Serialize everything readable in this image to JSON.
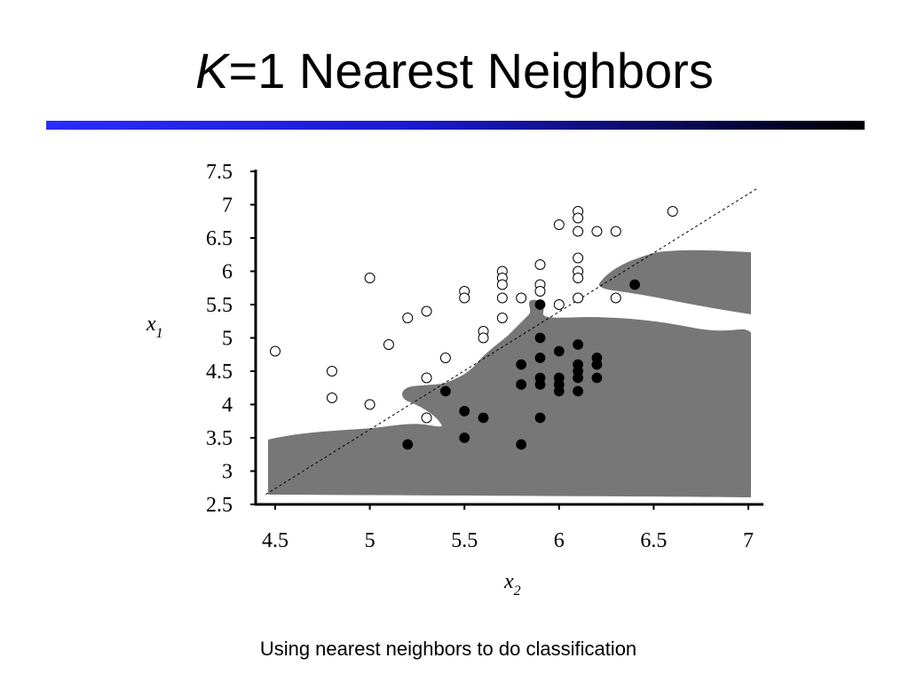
{
  "slide": {
    "title_k": "K",
    "title_rest": "=1 Nearest Neighbors",
    "caption": "Using nearest neighbors to do classification"
  },
  "chart_data": {
    "type": "scatter",
    "xlabel": "x",
    "xlabel_sub": "2",
    "ylabel": "x",
    "ylabel_sub": "1",
    "xlim": [
      4.45,
      7.08
    ],
    "ylim": [
      2.5,
      7.5
    ],
    "xticks": [
      "4.5",
      "5",
      "5.5",
      "6",
      "6.5",
      "7"
    ],
    "yticks": [
      "7.5",
      "7",
      "6.5",
      "6",
      "5.5",
      "5",
      "4.5",
      "4",
      "3.5",
      "3",
      "2.5"
    ],
    "grid": false,
    "region_color": "#777777",
    "diagonal": [
      [
        4.45,
        2.65
      ],
      [
        7.05,
        7.25
      ]
    ],
    "series": [
      {
        "marker": "open-circle",
        "points": [
          [
            4.5,
            4.8
          ],
          [
            4.8,
            4.5
          ],
          [
            4.8,
            4.1
          ],
          [
            5.0,
            5.9
          ],
          [
            5.0,
            4.0
          ],
          [
            5.1,
            4.9
          ],
          [
            5.2,
            5.3
          ],
          [
            5.3,
            5.4
          ],
          [
            5.3,
            4.4
          ],
          [
            5.3,
            3.8
          ],
          [
            5.4,
            4.7
          ],
          [
            5.5,
            5.7
          ],
          [
            5.5,
            5.6
          ],
          [
            5.6,
            5.1
          ],
          [
            5.6,
            5.0
          ],
          [
            5.7,
            6.0
          ],
          [
            5.7,
            5.9
          ],
          [
            5.7,
            5.8
          ],
          [
            5.7,
            5.6
          ],
          [
            5.7,
            5.3
          ],
          [
            5.8,
            5.6
          ],
          [
            5.9,
            6.1
          ],
          [
            5.9,
            5.8
          ],
          [
            5.9,
            5.7
          ],
          [
            6.0,
            6.7
          ],
          [
            6.0,
            5.5
          ],
          [
            6.1,
            6.9
          ],
          [
            6.1,
            6.8
          ],
          [
            6.1,
            6.6
          ],
          [
            6.1,
            6.2
          ],
          [
            6.1,
            6.0
          ],
          [
            6.1,
            5.9
          ],
          [
            6.1,
            5.6
          ],
          [
            6.2,
            6.6
          ],
          [
            6.3,
            6.6
          ],
          [
            6.3,
            5.6
          ],
          [
            6.6,
            6.9
          ]
        ]
      },
      {
        "marker": "filled-circle",
        "points": [
          [
            5.2,
            3.4
          ],
          [
            5.4,
            4.2
          ],
          [
            5.5,
            3.9
          ],
          [
            5.5,
            3.5
          ],
          [
            5.6,
            3.8
          ],
          [
            5.8,
            4.6
          ],
          [
            5.8,
            4.3
          ],
          [
            5.8,
            3.4
          ],
          [
            5.9,
            5.5
          ],
          [
            5.9,
            5.0
          ],
          [
            5.9,
            4.7
          ],
          [
            5.9,
            4.4
          ],
          [
            5.9,
            4.3
          ],
          [
            5.9,
            3.8
          ],
          [
            6.0,
            4.8
          ],
          [
            6.0,
            4.4
          ],
          [
            6.0,
            4.3
          ],
          [
            6.0,
            4.2
          ],
          [
            6.1,
            4.9
          ],
          [
            6.1,
            4.6
          ],
          [
            6.1,
            4.5
          ],
          [
            6.1,
            4.4
          ],
          [
            6.1,
            4.2
          ],
          [
            6.2,
            4.7
          ],
          [
            6.2,
            4.6
          ],
          [
            6.2,
            4.4
          ],
          [
            6.4,
            5.8
          ]
        ]
      }
    ]
  }
}
